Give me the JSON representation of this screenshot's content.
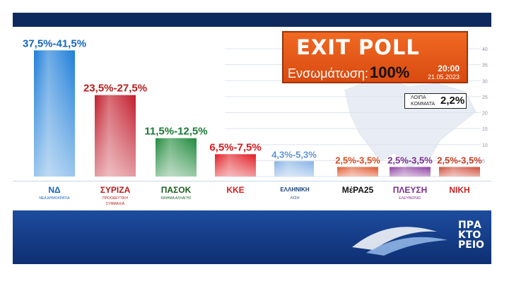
{
  "header": {
    "title": "EXIT POLL",
    "integration_label": "Ενσωμάτωση:",
    "integration_value": "100%",
    "time": "20:00",
    "date": "21.05.2023"
  },
  "others": {
    "label_line1": "ΛΟΙΠΑ",
    "label_line2": "ΚΟΜΜΑΤΑ",
    "value": "2,2%"
  },
  "chart_data": {
    "type": "bar",
    "ylim": [
      0,
      42
    ],
    "y_ticks": [
      0,
      5,
      10,
      15,
      20,
      25,
      30,
      35,
      40
    ],
    "grid": true,
    "categories": [
      "ΝΔ",
      "ΣΥΡΙΖΑ",
      "ΠΑΣΟΚ",
      "ΚΚΕ",
      "ΕΛΛΗΝΙΚΗ ΛΥΣΗ",
      "ΜέΡΑ25",
      "ΠΛΕΥΣΗ ΕΛΕΥΘΕΡΙΑΣ",
      "ΝΙΚΗ"
    ],
    "values": [
      39.5,
      25.5,
      12.0,
      7.0,
      4.8,
      3.0,
      3.0,
      3.0
    ],
    "value_labels": [
      "37,5%-41,5%",
      "23,5%-27,5%",
      "11,5%-12,5%",
      "6,5%-7,5%",
      "4,3%-5,3%",
      "2,5%-3,5%",
      "2,5%-3,5%",
      "2,5%-3,5%"
    ],
    "colors": [
      "#1f7fd9",
      "#c21d2c",
      "#1f8a3c",
      "#e11b22",
      "#86b3e6",
      "#e0562c",
      "#8c3fa0",
      "#d04a36"
    ],
    "label_colors": [
      "#1565c0",
      "#b71c1c",
      "#1b7a34",
      "#d81b1b",
      "#5f94cc",
      "#d84a1f",
      "#7b2d8e",
      "#c23b22"
    ]
  },
  "logos": [
    {
      "main": "ΝΔ",
      "sub": "ΝΕΑ ΔΗΜΟΚΡΑΤΙΑ",
      "color": "#1565c0"
    },
    {
      "main": "ΣΥΡΙΖΑ",
      "sub": "ΠΡΟΟΔΕΥΤΙΚΗ ΣΥΜΜΑΧΙΑ",
      "color": "#b71c1c"
    },
    {
      "main": "ΠΑΣΟΚ",
      "sub": "ΚΙΝΗΜΑ ΑΛΛΑΓΗΣ",
      "color": "#1b5e20"
    },
    {
      "main": "ΚΚΕ",
      "sub": "",
      "color": "#d81b1b"
    },
    {
      "main": "ΕΛΛΗΝΙΚΗ",
      "sub": "ΛΥΣΗ",
      "color": "#1a3f7a"
    },
    {
      "main": "ΜέΡΑ25",
      "sub": "",
      "color": "#111111"
    },
    {
      "main": "ΠΛΕΥΣΗ",
      "sub": "ΕΛΕΥΘΕΡΙΑΣ",
      "color": "#7b2d8e"
    },
    {
      "main": "ΝΙΚΗ",
      "sub": "",
      "color": "#c62828"
    }
  ],
  "brand": {
    "line1": "ΠΡΑ",
    "line2": "ΚΤΟ",
    "line3": "ΡΕΙΟ"
  }
}
